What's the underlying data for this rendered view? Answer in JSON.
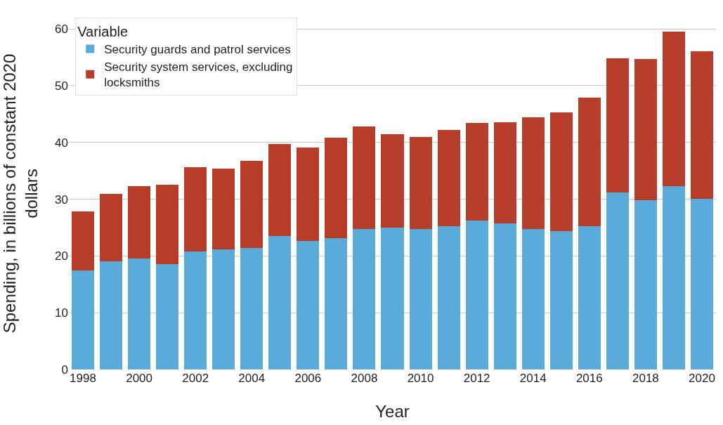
{
  "chart_data": {
    "type": "bar",
    "stacked": true,
    "xlabel": "Year",
    "ylabel": "Spending, in billions of constant 2020 dollars",
    "legend_title": "Variable",
    "x": [
      1998,
      1999,
      2000,
      2001,
      2002,
      2003,
      2004,
      2005,
      2006,
      2007,
      2008,
      2009,
      2010,
      2011,
      2012,
      2013,
      2014,
      2015,
      2016,
      2017,
      2018,
      2019,
      2020
    ],
    "series": [
      {
        "name": "Security guards and patrol services",
        "color": "#5aabd9",
        "values": [
          17.4,
          19.1,
          19.5,
          18.6,
          20.8,
          21.2,
          21.4,
          23.5,
          22.7,
          23.1,
          24.8,
          25.0,
          24.8,
          25.2,
          26.2,
          25.7,
          24.8,
          24.4,
          25.3,
          31.2,
          29.8,
          32.3,
          30.1
        ]
      },
      {
        "name": "Security system services, excluding locksmiths",
        "color": "#b53d2a",
        "values": [
          10.5,
          11.9,
          12.8,
          13.9,
          14.8,
          14.2,
          15.4,
          16.2,
          16.4,
          17.7,
          18.0,
          16.5,
          16.2,
          17.0,
          17.2,
          17.8,
          19.6,
          20.9,
          22.6,
          23.6,
          24.9,
          27.2,
          25.9
        ]
      }
    ],
    "xlim": [
      1997.5,
      2020.5
    ],
    "xticks": [
      1998,
      2000,
      2002,
      2004,
      2006,
      2008,
      2010,
      2012,
      2014,
      2016,
      2018,
      2020
    ],
    "ylim": [
      0,
      62
    ],
    "yticks": [
      0,
      10,
      20,
      30,
      40,
      50,
      60
    ],
    "grid": "y",
    "legend": "top left"
  }
}
